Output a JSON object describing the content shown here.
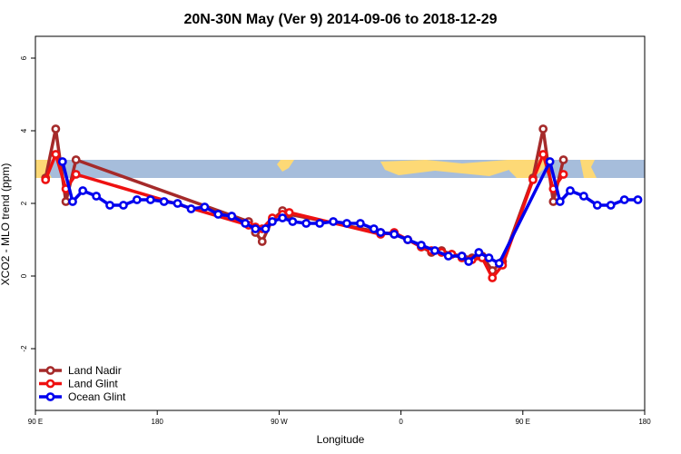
{
  "chart_data": {
    "type": "line",
    "title": "20N-30N May (Ver 9)   2014-09-06 to 2018-12-29",
    "xlabel": "Longitude",
    "ylabel": "XCO2 - MLO trend (ppm)",
    "xlim": [
      90,
      540
    ],
    "ylim": [
      -3.7,
      6.6
    ],
    "xticks": [
      {
        "value": 90,
        "label": "90 E"
      },
      {
        "value": 180,
        "label": "180"
      },
      {
        "value": 270,
        "label": "90 W"
      },
      {
        "value": 360,
        "label": "0"
      },
      {
        "value": 450,
        "label": "90 E"
      },
      {
        "value": 540,
        "label": "180"
      }
    ],
    "yticks": [
      {
        "value": -2,
        "label": "-2"
      },
      {
        "value": 0,
        "label": "0"
      },
      {
        "value": 2,
        "label": "2"
      },
      {
        "value": 4,
        "label": "4"
      },
      {
        "value": 6,
        "label": "6"
      }
    ],
    "map_band": {
      "ymin": 2.7,
      "ymax": 3.2,
      "ocean_color": "#a6bddb",
      "land_color": "#fdd976"
    },
    "legend_position": "bottom-left",
    "series": [
      {
        "name": "Land Nadir",
        "color": "#a52a2a",
        "points": [
          [
            97.5,
            2.7
          ],
          [
            105,
            4.05
          ],
          [
            112.5,
            2.05
          ],
          [
            120,
            3.2
          ],
          [
            247.5,
            1.5
          ],
          [
            252.5,
            1.2
          ],
          [
            257.5,
            0.95
          ],
          [
            265,
            1.55
          ],
          [
            272.5,
            1.8
          ],
          [
            277.5,
            1.7
          ],
          [
            345,
            1.2
          ],
          [
            355,
            1.15
          ],
          [
            365,
            1.0
          ],
          [
            375,
            0.8
          ],
          [
            382.5,
            0.65
          ],
          [
            390,
            0.7
          ],
          [
            397.5,
            0.6
          ],
          [
            405,
            0.55
          ],
          [
            412.5,
            0.5
          ],
          [
            420,
            0.55
          ],
          [
            427.5,
            0.15
          ],
          [
            435,
            0.4
          ],
          [
            457.5,
            2.7
          ],
          [
            465,
            4.05
          ],
          [
            472.5,
            2.05
          ],
          [
            480,
            3.2
          ]
        ]
      },
      {
        "name": "Land Glint",
        "color": "#ee1111",
        "points": [
          [
            97.5,
            2.65
          ],
          [
            105,
            3.35
          ],
          [
            112.5,
            2.4
          ],
          [
            120,
            2.8
          ],
          [
            247.5,
            1.4
          ],
          [
            252.5,
            1.35
          ],
          [
            257.5,
            1.3
          ],
          [
            265,
            1.6
          ],
          [
            272.5,
            1.7
          ],
          [
            277.5,
            1.75
          ],
          [
            345,
            1.15
          ],
          [
            355,
            1.2
          ],
          [
            365,
            1.0
          ],
          [
            375,
            0.8
          ],
          [
            382.5,
            0.7
          ],
          [
            390,
            0.65
          ],
          [
            397.5,
            0.6
          ],
          [
            405,
            0.5
          ],
          [
            412.5,
            0.45
          ],
          [
            420,
            0.5
          ],
          [
            427.5,
            -0.05
          ],
          [
            435,
            0.3
          ],
          [
            457.5,
            2.65
          ],
          [
            465,
            3.35
          ],
          [
            472.5,
            2.4
          ],
          [
            480,
            2.8
          ]
        ]
      },
      {
        "name": "Ocean Glint",
        "color": "#0000ee",
        "points": [
          [
            110,
            3.15
          ],
          [
            117.5,
            2.05
          ],
          [
            125,
            2.35
          ],
          [
            135,
            2.2
          ],
          [
            145,
            1.95
          ],
          [
            155,
            1.95
          ],
          [
            165,
            2.1
          ],
          [
            175,
            2.1
          ],
          [
            185,
            2.05
          ],
          [
            195,
            2.0
          ],
          [
            205,
            1.85
          ],
          [
            215,
            1.9
          ],
          [
            225,
            1.7
          ],
          [
            235,
            1.65
          ],
          [
            245,
            1.45
          ],
          [
            252.5,
            1.3
          ],
          [
            260,
            1.3
          ],
          [
            265,
            1.5
          ],
          [
            272.5,
            1.6
          ],
          [
            280,
            1.5
          ],
          [
            290,
            1.45
          ],
          [
            300,
            1.45
          ],
          [
            310,
            1.5
          ],
          [
            320,
            1.45
          ],
          [
            330,
            1.45
          ],
          [
            340,
            1.3
          ],
          [
            345,
            1.2
          ],
          [
            355,
            1.15
          ],
          [
            365,
            1.0
          ],
          [
            375,
            0.85
          ],
          [
            385,
            0.7
          ],
          [
            395,
            0.55
          ],
          [
            405,
            0.55
          ],
          [
            410,
            0.4
          ],
          [
            417.5,
            0.65
          ],
          [
            425,
            0.5
          ],
          [
            432.5,
            0.35
          ],
          [
            470,
            3.15
          ],
          [
            477.5,
            2.05
          ],
          [
            485,
            2.35
          ],
          [
            495,
            2.2
          ],
          [
            505,
            1.95
          ],
          [
            515,
            1.95
          ],
          [
            525,
            2.1
          ],
          [
            535,
            2.1
          ]
        ]
      }
    ]
  }
}
